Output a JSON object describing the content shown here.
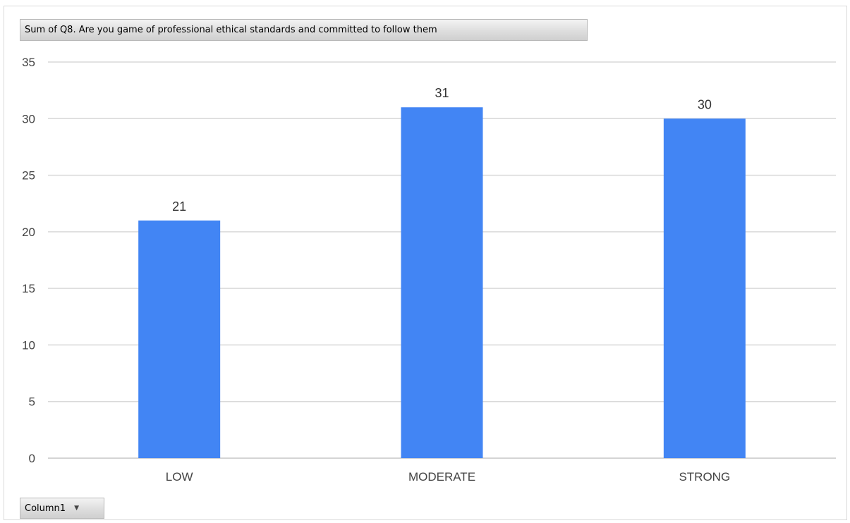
{
  "value_field": "Sum of Q8. Are you game of professional ethical standards and committed to follow them",
  "axis_field": {
    "label": "Column1",
    "icon": "dropdown-caret-icon"
  },
  "chart_data": {
    "type": "bar",
    "categories": [
      "LOW",
      "MODERATE",
      "STRONG"
    ],
    "values": [
      21,
      31,
      30
    ],
    "ylim": [
      0,
      35
    ],
    "yticks": [
      0,
      5,
      10,
      15,
      20,
      25,
      30,
      35
    ],
    "grid": true,
    "legend": "none",
    "bar_color": "#4285F4",
    "data_labels": true
  }
}
